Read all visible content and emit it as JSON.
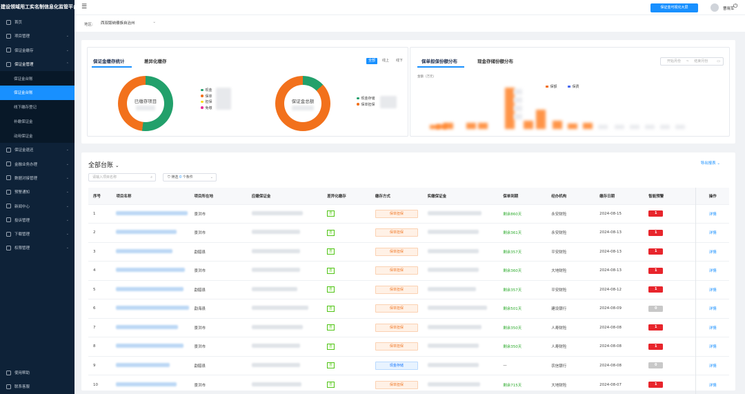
{
  "app": {
    "title": "建设领域用工实名制信息化监管平台"
  },
  "sidebar": {
    "items": [
      {
        "label": "首页",
        "icon": "home-icon"
      },
      {
        "label": "项目管理",
        "icon": "project-icon"
      },
      {
        "label": "保证金缴存",
        "icon": "deposit-icon"
      },
      {
        "label": "保证金管理",
        "icon": "manage-icon"
      }
    ],
    "sub_items": [
      {
        "label": "保证金台账",
        "active": false
      },
      {
        "label": "保证金台账",
        "active": true
      },
      {
        "label": "线下缴存登记",
        "active": false
      },
      {
        "label": "补缴保证金",
        "active": false
      },
      {
        "label": "动用保证金",
        "active": false
      }
    ],
    "items_after": [
      {
        "label": "保证金退还",
        "icon": "refund-icon"
      },
      {
        "label": "金融业务办理",
        "icon": "finance-icon"
      },
      {
        "label": "数据对接管理",
        "icon": "data-icon"
      },
      {
        "label": "预警通知",
        "icon": "alert-icon"
      },
      {
        "label": "新闻中心",
        "icon": "news-icon"
      },
      {
        "label": "投诉管理",
        "icon": "complaint-icon"
      },
      {
        "label": "下载管理",
        "icon": "download-icon"
      },
      {
        "label": "权限管理",
        "icon": "permission-icon"
      }
    ],
    "bottom": [
      {
        "label": "使用帮助",
        "icon": "help-icon"
      },
      {
        "label": "联系客服",
        "icon": "service-icon"
      }
    ]
  },
  "topbar": {
    "big_screen_button": "保证金可视化大屏",
    "username": "曹晓军"
  },
  "region": {
    "label": "地区:",
    "value": "西双版纳傣族自治州"
  },
  "stats": {
    "tabs": [
      "保证金缴存统计",
      "差异化缴存"
    ],
    "segments": [
      "全部",
      "线上",
      "线下"
    ],
    "donut1": {
      "center": "已缴存项目",
      "legend": [
        "现金",
        "保单",
        "担保",
        "免缴"
      ],
      "colors": [
        "#22a06b",
        "#f2711c",
        "#fadb14",
        "#eb2f96"
      ],
      "shares": [
        0.52,
        0.48
      ]
    },
    "donut2": {
      "center": "保证金总额",
      "legend": [
        "现金存储",
        "保单担保"
      ],
      "colors": [
        "#22a06b",
        "#f2711c"
      ],
      "shares": [
        0.13,
        0.87
      ]
    }
  },
  "distribution": {
    "tabs": [
      "保单担保份额分布",
      "现金存储份额分布"
    ],
    "date_start": "开始月份",
    "date_sep": "~",
    "date_end": "结束月份",
    "ylabel": "金额（万元）",
    "legend": [
      "保额",
      "保费"
    ],
    "legend_colors": [
      "#f2711c",
      "#4b6cf0"
    ]
  },
  "ledger": {
    "title": "全部台账",
    "export": "导出报表",
    "search_placeholder": "请输入项目名称",
    "filter_label": "筛选",
    "filter_count": "0",
    "filter_suffix": "个条件",
    "columns": [
      "序号",
      "项目名称",
      "项目所在地",
      "应缴保证金",
      "差异化缴存",
      "缴存方式",
      "实缴保证金",
      "保单到期",
      "经办机构",
      "缴存日期",
      "智能预警",
      "操作"
    ],
    "rows": [
      {
        "no": "1",
        "location": "景洪市",
        "diff": "否",
        "method": "保单担保",
        "method_type": "bd",
        "expire": "剩余860天",
        "agency": "永安财险",
        "date": "2024-08-15",
        "warn": "1",
        "warn_type": "red",
        "op": "详情"
      },
      {
        "no": "2",
        "location": "景洪市",
        "diff": "否",
        "method": "保单担保",
        "method_type": "bd",
        "expire": "剩余361天",
        "agency": "永安财险",
        "date": "2024-08-13",
        "warn": "1",
        "warn_type": "red",
        "op": "详情"
      },
      {
        "no": "3",
        "location": "勐腊县",
        "diff": "否",
        "method": "保单担保",
        "method_type": "bd",
        "expire": "剩余357天",
        "agency": "平安财险",
        "date": "2024-08-13",
        "warn": "1",
        "warn_type": "red",
        "op": "详情"
      },
      {
        "no": "4",
        "location": "景洪市",
        "diff": "否",
        "method": "保单担保",
        "method_type": "bd",
        "expire": "剩余360天",
        "agency": "大地财险",
        "date": "2024-08-13",
        "warn": "1",
        "warn_type": "red",
        "op": "详情"
      },
      {
        "no": "5",
        "location": "勐腊县",
        "diff": "否",
        "method": "保单担保",
        "method_type": "bd",
        "expire": "剩余357天",
        "agency": "平安财险",
        "date": "2024-08-12",
        "warn": "1",
        "warn_type": "red",
        "op": "详情"
      },
      {
        "no": "6",
        "location": "勐海县",
        "diff": "否",
        "method": "保单担保",
        "method_type": "bd",
        "expire": "剩余501天",
        "agency": "建设银行",
        "date": "2024-08-09",
        "warn": "0",
        "warn_type": "gray",
        "op": "详情"
      },
      {
        "no": "7",
        "location": "景洪市",
        "diff": "否",
        "method": "保单担保",
        "method_type": "bd",
        "expire": "剩余350天",
        "agency": "人寿财险",
        "date": "2024-08-08",
        "warn": "1",
        "warn_type": "red",
        "op": "详情"
      },
      {
        "no": "8",
        "location": "景洪市",
        "diff": "否",
        "method": "保单担保",
        "method_type": "bd",
        "expire": "剩余350天",
        "agency": "人寿财险",
        "date": "2024-08-08",
        "warn": "1",
        "warn_type": "red",
        "op": "详情"
      },
      {
        "no": "9",
        "location": "勐腊县",
        "diff": "否",
        "method": "现金存储",
        "method_type": "cash",
        "expire": "—",
        "agency": "农信银行",
        "date": "2024-08-08",
        "warn": "0",
        "warn_type": "gray",
        "op": "详情"
      },
      {
        "no": "10",
        "location": "景洪市",
        "diff": "否",
        "method": "保单担保",
        "method_type": "bd",
        "expire": "剩余715天",
        "agency": "大地财险",
        "date": "2024-08-07",
        "warn": "1",
        "warn_type": "red",
        "op": "详情"
      }
    ]
  }
}
